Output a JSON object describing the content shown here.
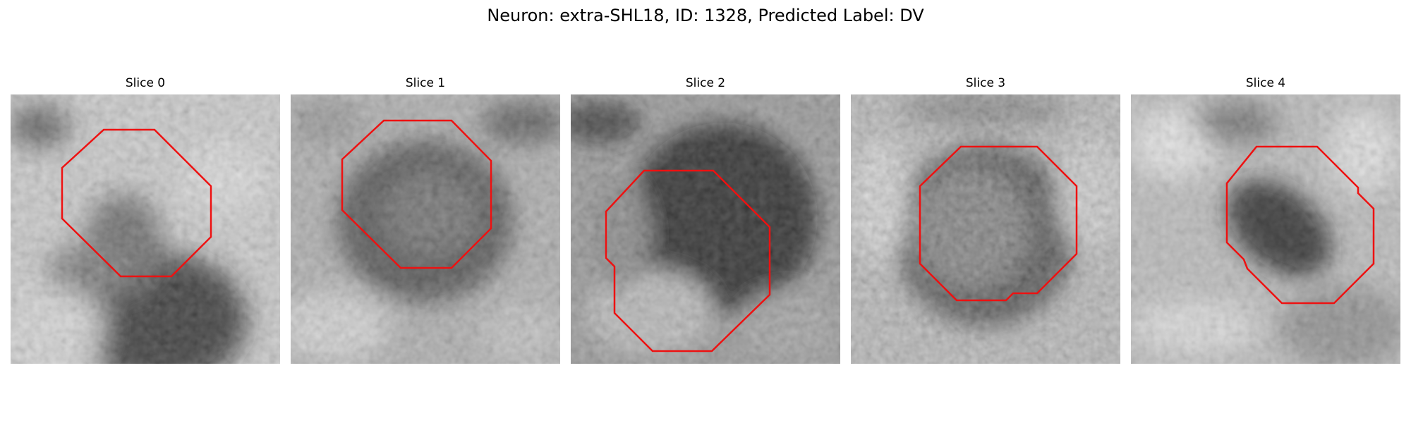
{
  "figure": {
    "title": "Neuron: extra-SHL18, ID: 1328, Predicted Label: DV"
  },
  "colors": {
    "contour": "#ee1111",
    "background": "#ffffff"
  },
  "panels": [
    {
      "title": "Slice 0",
      "image": "grayscale-microscopy-tile"
    },
    {
      "title": "Slice 1",
      "image": "grayscale-microscopy-tile"
    },
    {
      "title": "Slice 2",
      "image": "grayscale-microscopy-tile"
    },
    {
      "title": "Slice 3",
      "image": "grayscale-microscopy-tile"
    },
    {
      "title": "Slice 4",
      "image": "grayscale-microscopy-tile"
    }
  ]
}
